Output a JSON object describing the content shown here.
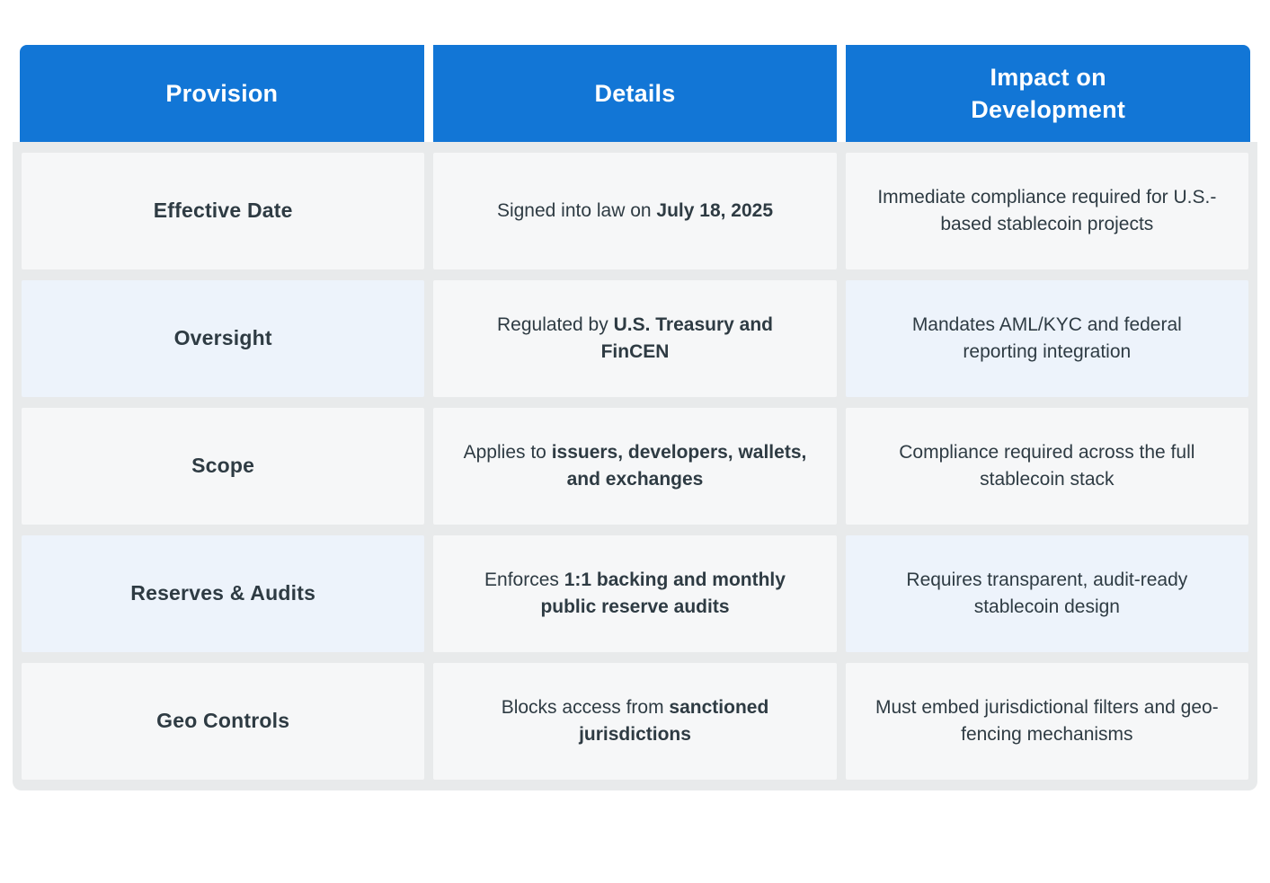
{
  "theme": {
    "header_bg": "#1276d6",
    "header_text": "#ffffff",
    "cell_bg": "#f6f7f8",
    "cell_bg_alt": "#edf3fb",
    "grid_bg": "#e8eaeb",
    "page_bg": "#ffffff",
    "text_color": "#2e3b43"
  },
  "table": {
    "columns": [
      {
        "id": "provision",
        "label": "Provision"
      },
      {
        "id": "details",
        "label": "Details"
      },
      {
        "id": "impact",
        "label": "Impact on\nDevelopment"
      }
    ],
    "rows": [
      {
        "provision": "Effective Date",
        "details_pre": "Signed into law on ",
        "details_bold": "July 18, 2025",
        "impact": "Immediate compliance required for U.S.-based stablecoin projects"
      },
      {
        "provision": "Oversight",
        "details_pre": "Regulated by ",
        "details_bold": "U.S. Treasury and FinCEN",
        "impact": "Mandates AML/KYC and federal reporting integration"
      },
      {
        "provision": "Scope",
        "details_pre": "Applies to ",
        "details_bold": "issuers, developers, wallets, and exchanges",
        "impact": "Compliance required across the full stablecoin stack"
      },
      {
        "provision": "Reserves & Audits",
        "details_pre": "Enforces ",
        "details_bold": "1:1 backing and monthly public reserve audits",
        "impact": "Requires transparent, audit-ready stablecoin design"
      },
      {
        "provision": "Geo Controls",
        "details_pre": "Blocks access from ",
        "details_bold": "sanctioned jurisdictions",
        "impact": "Must embed jurisdictional filters and geo-fencing mechanisms"
      }
    ]
  }
}
